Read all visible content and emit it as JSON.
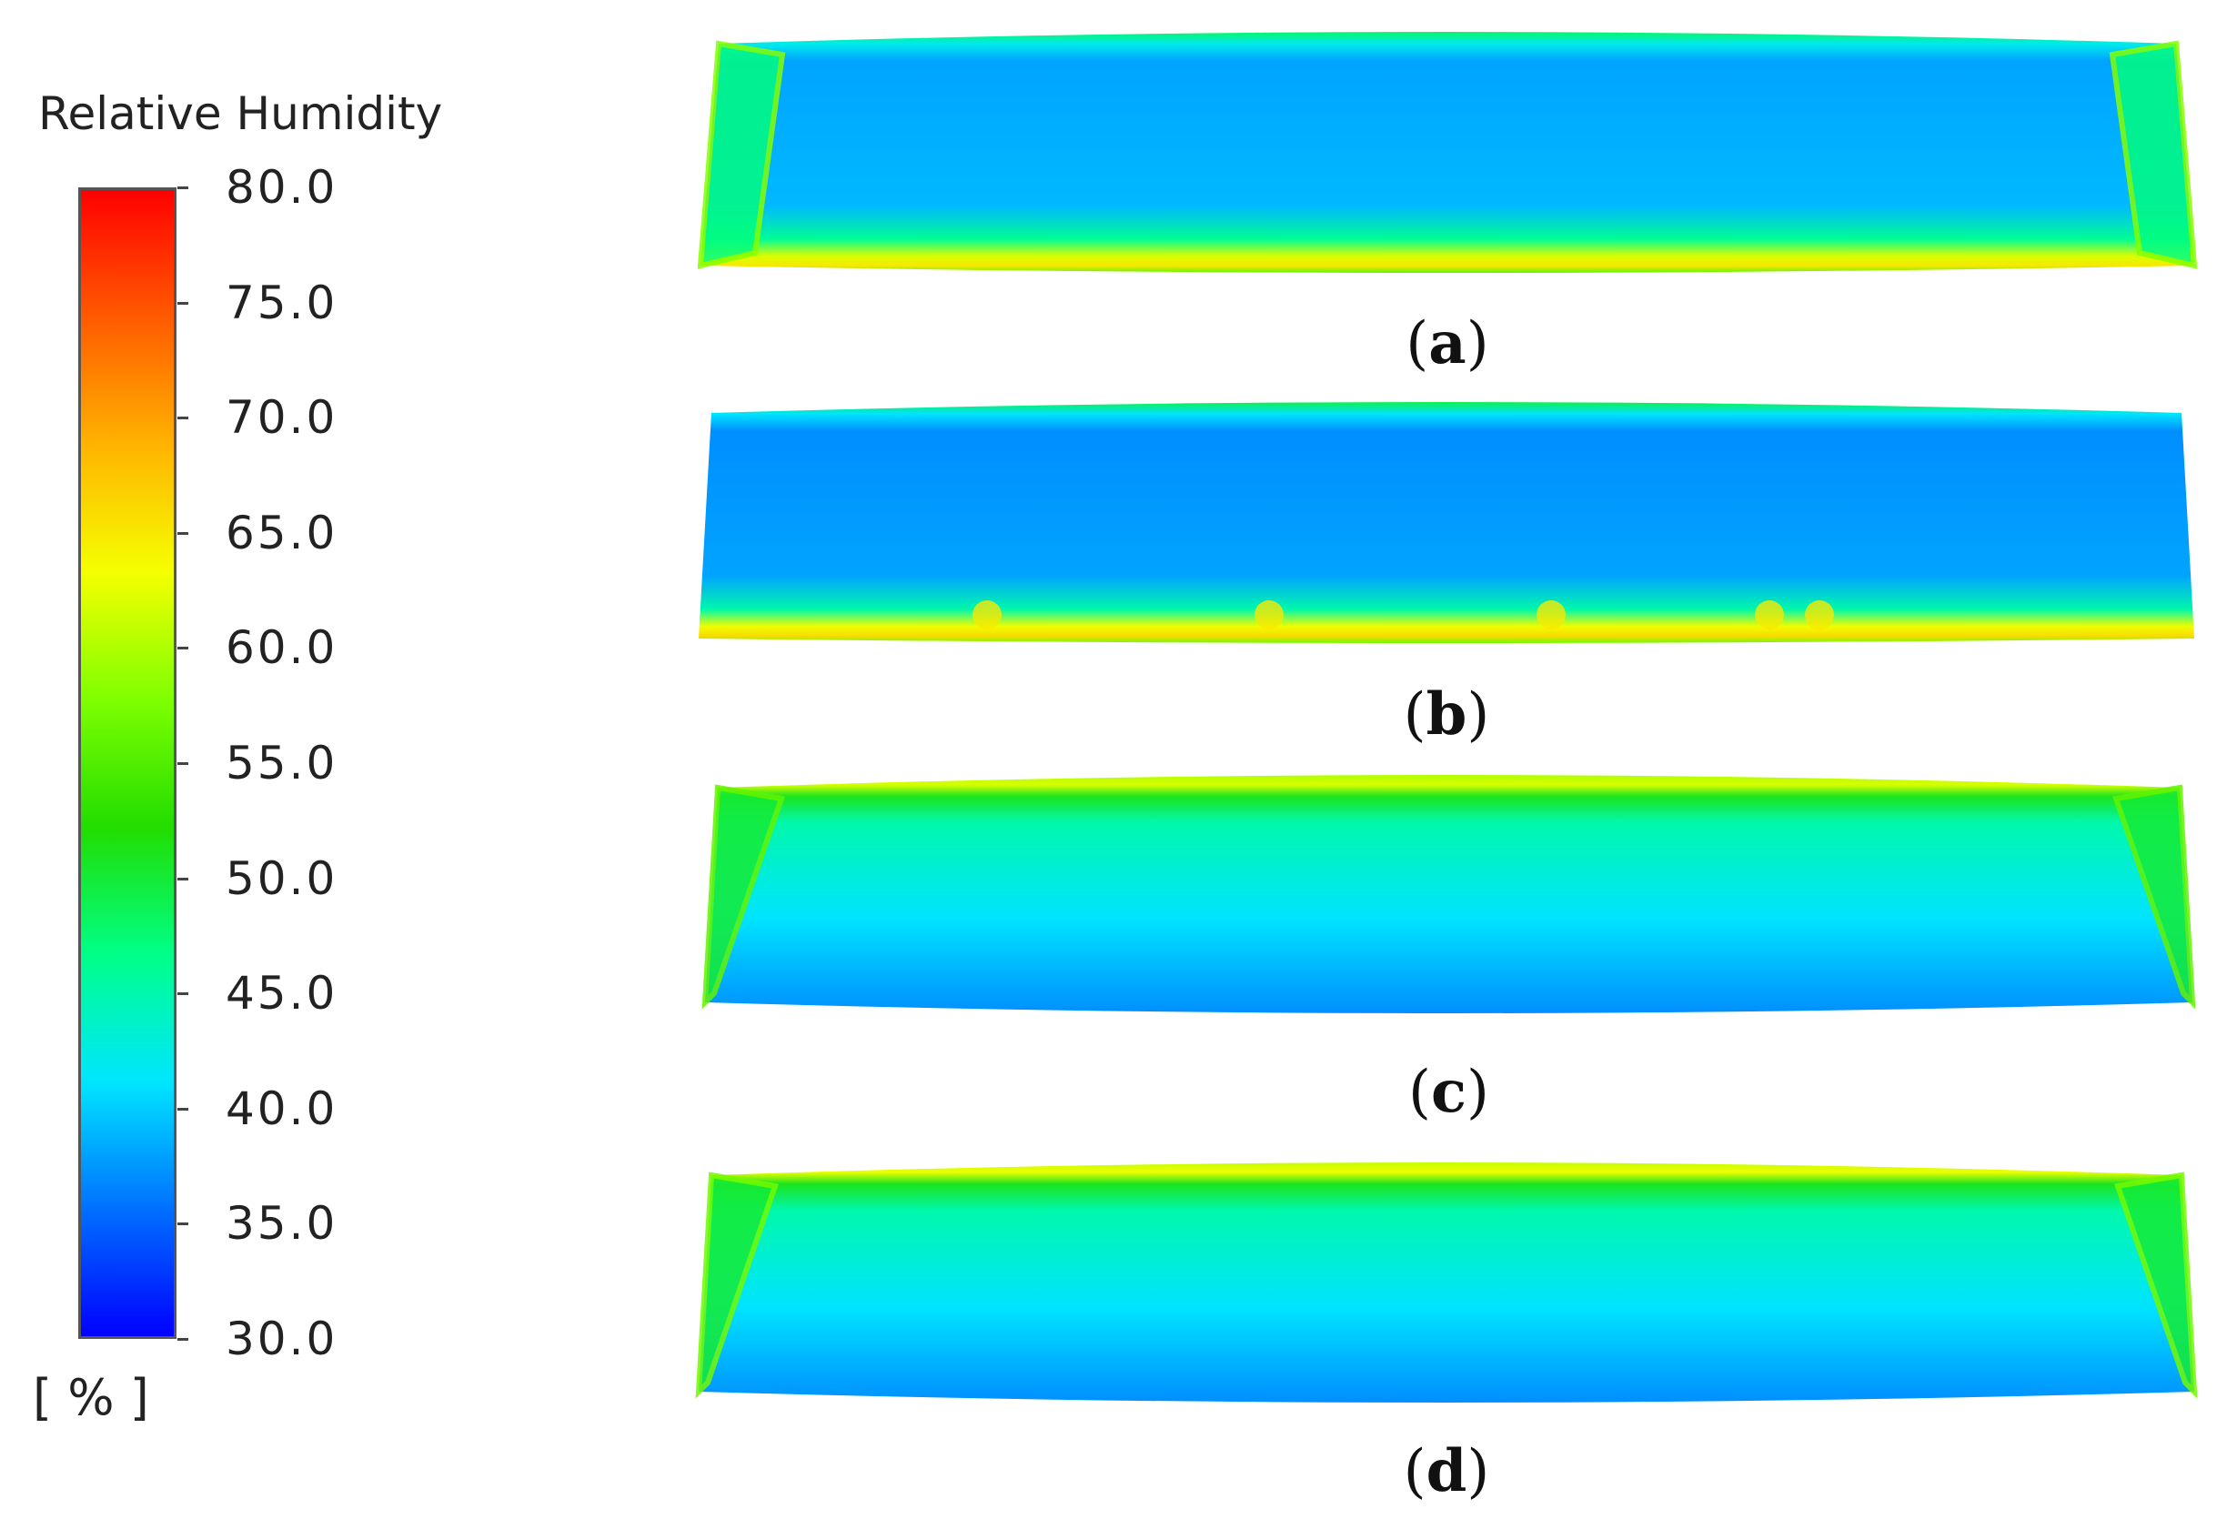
{
  "chart_data": {
    "type": "heatmap",
    "title": "",
    "colorbar": {
      "label": "Relative Humidity",
      "unit": "[ % ]",
      "min": 30.0,
      "max": 80.0,
      "ticks": [
        "80.0",
        "75.0",
        "70.0",
        "65.0",
        "60.0",
        "55.0",
        "50.0",
        "45.0",
        "40.0",
        "35.0",
        "30.0"
      ],
      "colormap": [
        "#0000ff",
        "#0070ff",
        "#00e6ff",
        "#00ff88",
        "#22dd00",
        "#7fff00",
        "#f5ff00",
        "#ffb300",
        "#ff5a00",
        "#ff0000"
      ]
    },
    "panels": [
      {
        "label": "a",
        "dominant_value": 38,
        "edge_value": 62,
        "high_edge": "bottom"
      },
      {
        "label": "b",
        "dominant_value": 37,
        "edge_value": 63,
        "high_edge": "bottom"
      },
      {
        "label": "c",
        "dominant_value": 41,
        "edge_value": 60,
        "high_edge": "top"
      },
      {
        "label": "d",
        "dominant_value": 41,
        "edge_value": 61,
        "high_edge": "top"
      }
    ]
  }
}
